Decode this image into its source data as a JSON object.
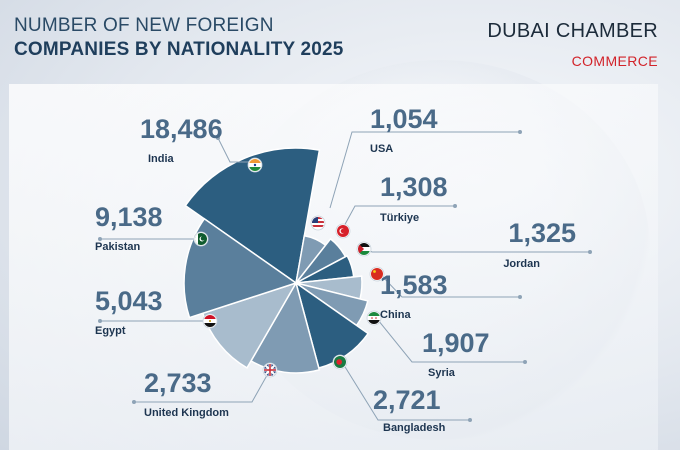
{
  "header": {
    "title_line1": "NUMBER OF NEW FOREIGN",
    "title_line2": "COMPANIES BY NATIONALITY 2025"
  },
  "brand": {
    "name": "DUBAI CHAMBER",
    "sub": "COMMERCE",
    "accent_color": "#d2232a"
  },
  "chart_data": {
    "type": "pie",
    "variant": "polar-area",
    "title": "NUMBER OF NEW FOREIGN COMPANIES BY NATIONALITY 2025",
    "categories": [
      "India",
      "USA",
      "Türkiye",
      "Jordan",
      "China",
      "Syria",
      "Bangladesh",
      "United Kingdom",
      "Egypt",
      "Pakistan"
    ],
    "values": [
      18486,
      1054,
      1308,
      1325,
      1583,
      1907,
      2721,
      2733,
      5043,
      9138
    ],
    "value_labels": [
      "18,486",
      "1,054",
      "1,308",
      "1,325",
      "1,583",
      "1,907",
      "2,721",
      "2,733",
      "5,043",
      "9,138"
    ],
    "flags": [
      "india-flag",
      "usa-flag",
      "turkiye-flag",
      "jordan-flag",
      "china-flag",
      "syria-flag",
      "bangladesh-flag",
      "uk-flag",
      "egypt-flag",
      "pakistan-flag"
    ],
    "colors": {
      "dark": "#2c5e80",
      "mid": "#5a7f9c",
      "light": "#7f9bb3",
      "pale": "#a8bccd",
      "value_text": "#4a6a88",
      "label_text": "#1d3550"
    }
  }
}
